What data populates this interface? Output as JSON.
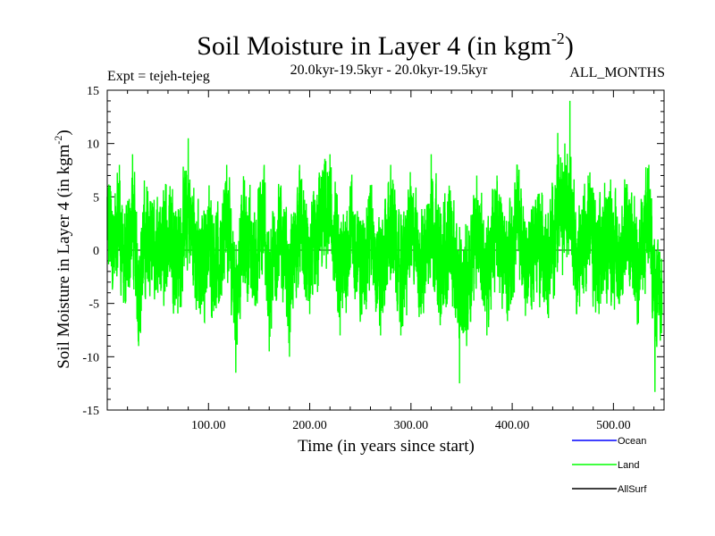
{
  "chart_data": {
    "type": "line",
    "title": "Soil Moisture in Layer 4 (in kgm",
    "title_sup": "-2",
    "title_close": ")",
    "subtitle_left": "Expt = tejeh-tejeg",
    "subtitle_center": "20.0kyr-19.5kyr - 20.0kyr-19.5kyr",
    "subtitle_right": "ALL_MONTHS",
    "xlabel": "Time (in years since start)",
    "ylabel": "Soil Moisture in Layer 4 (in kgm",
    "ylabel_sup": "-2",
    "ylabel_close": ")",
    "xlim": [
      0,
      550
    ],
    "ylim": [
      -15,
      15
    ],
    "x_ticks": [
      100,
      200,
      300,
      400,
      500
    ],
    "x_tick_labels": [
      "100.00",
      "200.00",
      "300.00",
      "400.00",
      "500.00"
    ],
    "y_ticks": [
      -15,
      -10,
      -5,
      0,
      5,
      10,
      15
    ],
    "y_tick_labels": [
      "-15",
      "-10",
      "-5",
      "0",
      "5",
      "10",
      "15"
    ],
    "zero_line": 0,
    "series": [
      {
        "name": "Ocean",
        "color": "#0000ff",
        "values": []
      },
      {
        "name": "Land",
        "color": "#00ff00",
        "description": "monthly anomaly series, approx. 6600 points oscillating between about -13 and +14",
        "key_points": [
          [
            0,
            5
          ],
          [
            3,
            6
          ],
          [
            7,
            0
          ],
          [
            12,
            8
          ],
          [
            18,
            -5
          ],
          [
            25,
            9
          ],
          [
            31,
            -9
          ],
          [
            40,
            5
          ],
          [
            50,
            -4
          ],
          [
            62,
            6
          ],
          [
            70,
            -3
          ],
          [
            80,
            10.5
          ],
          [
            92,
            -6
          ],
          [
            100,
            3
          ],
          [
            110,
            -5
          ],
          [
            118,
            8
          ],
          [
            127,
            -11.5
          ],
          [
            135,
            5
          ],
          [
            145,
            -3
          ],
          [
            155,
            8
          ],
          [
            160,
            -9.5
          ],
          [
            170,
            5
          ],
          [
            180,
            -10
          ],
          [
            190,
            8
          ],
          [
            200,
            -6
          ],
          [
            210,
            7
          ],
          [
            220,
            9
          ],
          [
            230,
            -8
          ],
          [
            240,
            6
          ],
          [
            250,
            -6
          ],
          [
            260,
            5
          ],
          [
            270,
            -8
          ],
          [
            280,
            8
          ],
          [
            290,
            -8
          ],
          [
            300,
            6
          ],
          [
            310,
            -6
          ],
          [
            320,
            9
          ],
          [
            330,
            -6
          ],
          [
            340,
            4
          ],
          [
            348,
            -12.5
          ],
          [
            355,
            -9
          ],
          [
            365,
            7
          ],
          [
            375,
            -8
          ],
          [
            385,
            7
          ],
          [
            395,
            -6
          ],
          [
            405,
            8
          ],
          [
            415,
            -5
          ],
          [
            425,
            5
          ],
          [
            435,
            -6
          ],
          [
            445,
            11
          ],
          [
            452,
            10
          ],
          [
            457,
            14
          ],
          [
            465,
            -4
          ],
          [
            475,
            7
          ],
          [
            485,
            -5
          ],
          [
            495,
            5
          ],
          [
            505,
            -3
          ],
          [
            515,
            4
          ],
          [
            525,
            -4
          ],
          [
            535,
            8
          ],
          [
            541,
            -13.3
          ],
          [
            545,
            -5
          ],
          [
            548,
            -6
          ]
        ]
      },
      {
        "name": "AllSurf",
        "color": "#000000",
        "values": []
      }
    ],
    "legend": {
      "placement": "bottom-right",
      "entries": [
        {
          "label": "Ocean",
          "color": "#0000ff"
        },
        {
          "label": "Land",
          "color": "#00ff00"
        },
        {
          "label": "AllSurf",
          "color": "#000000"
        }
      ]
    }
  }
}
